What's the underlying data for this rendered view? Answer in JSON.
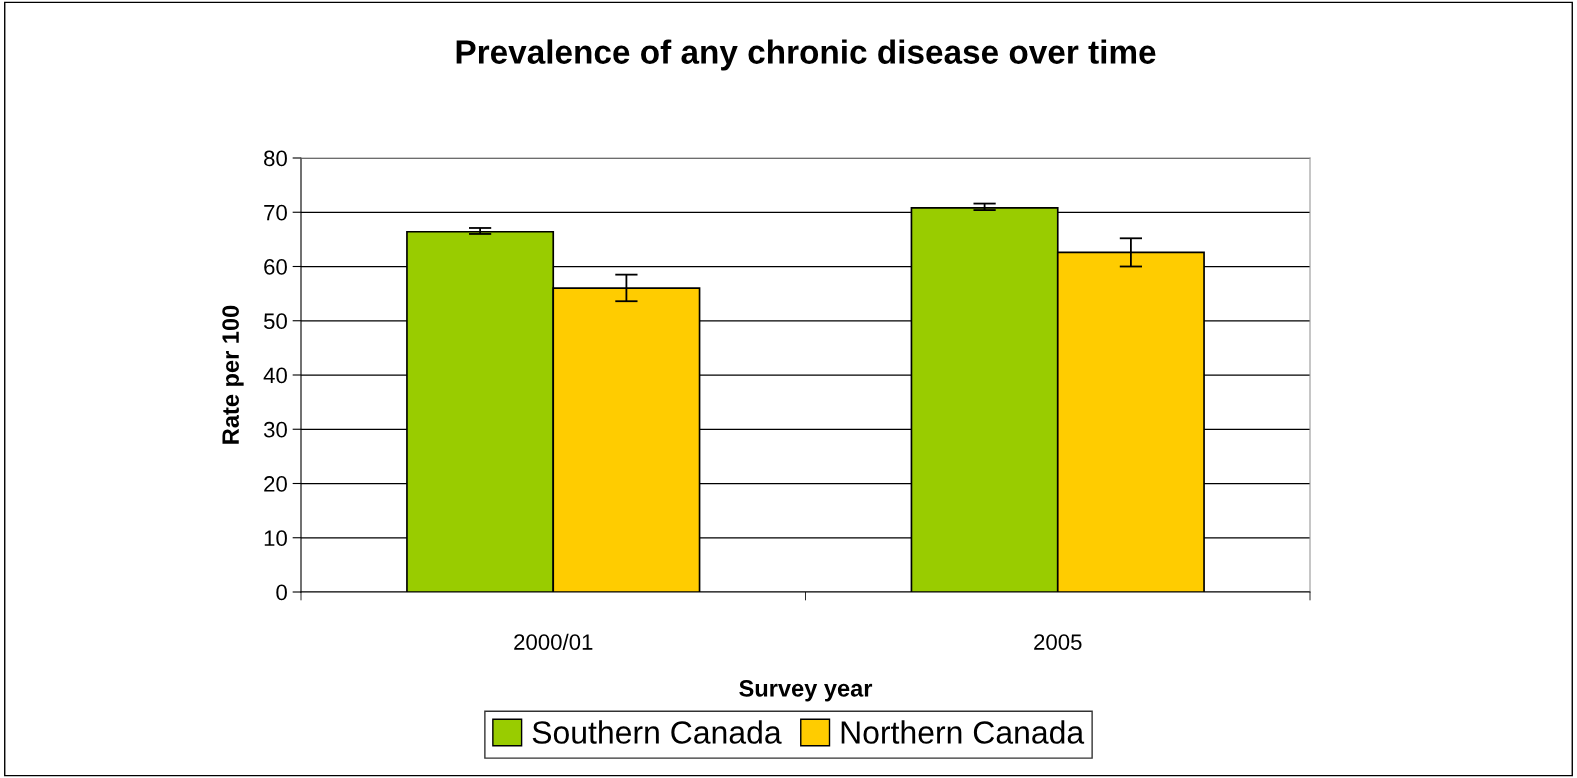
{
  "chart_data": {
    "type": "bar",
    "title": "Prevalence of any chronic disease over time",
    "xlabel": "Survey year",
    "ylabel": "Rate per 100",
    "categories": [
      "2000/01",
      "2005"
    ],
    "series": [
      {
        "name": "Southern Canada",
        "color": "#99cc00",
        "values": [
          66.4,
          70.8
        ],
        "errors": [
          [
            66.0,
            67.1
          ],
          [
            70.4,
            71.6
          ]
        ]
      },
      {
        "name": "Northern Canada",
        "color": "#ffcc00",
        "values": [
          56.0,
          62.6
        ],
        "errors": [
          [
            53.6,
            58.5
          ],
          [
            60.0,
            65.2
          ]
        ]
      }
    ],
    "ylim": [
      0,
      80
    ],
    "yticks": [
      0,
      10,
      20,
      30,
      40,
      50,
      60,
      70,
      80
    ],
    "grid": "y",
    "legend": "bottom"
  }
}
